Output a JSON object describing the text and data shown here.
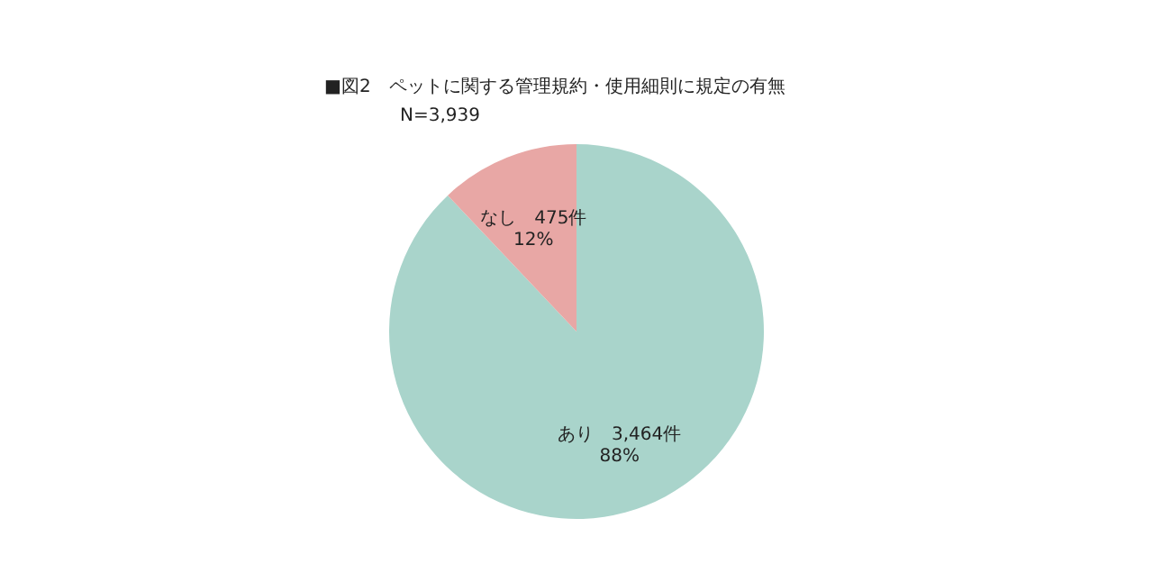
{
  "chart_data": {
    "type": "pie",
    "title": "■図2　ペットに関する管理規約・使用細則に規定の有無",
    "subtitle": "N=3,939",
    "categories": [
      "あり",
      "なし"
    ],
    "values": [
      3464,
      475
    ],
    "colors": [
      "#a9d4cb",
      "#e8a7a5"
    ],
    "value_labels": [
      "3,464件\n88%",
      "475件\n12%"
    ],
    "legend": false
  }
}
